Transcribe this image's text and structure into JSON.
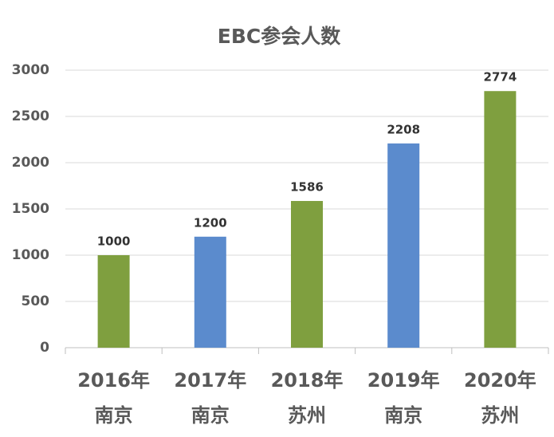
{
  "chart_data": {
    "type": "bar",
    "title": "EBC参会人数",
    "categories": [
      [
        "2016年",
        "南京"
      ],
      [
        "2017年",
        "南京"
      ],
      [
        "2018年",
        "苏州"
      ],
      [
        "2019年",
        "南京"
      ],
      [
        "2020年",
        "苏州"
      ]
    ],
    "values": [
      1000,
      1200,
      1586,
      2208,
      2774
    ],
    "colors": [
      "#7f9f3f",
      "#5b8bcd",
      "#7f9f3f",
      "#5b8bcd",
      "#7f9f3f"
    ],
    "ylim": [
      0,
      3000
    ],
    "yticks": [
      0,
      500,
      1000,
      1500,
      2000,
      2500,
      3000
    ],
    "grid": true
  }
}
